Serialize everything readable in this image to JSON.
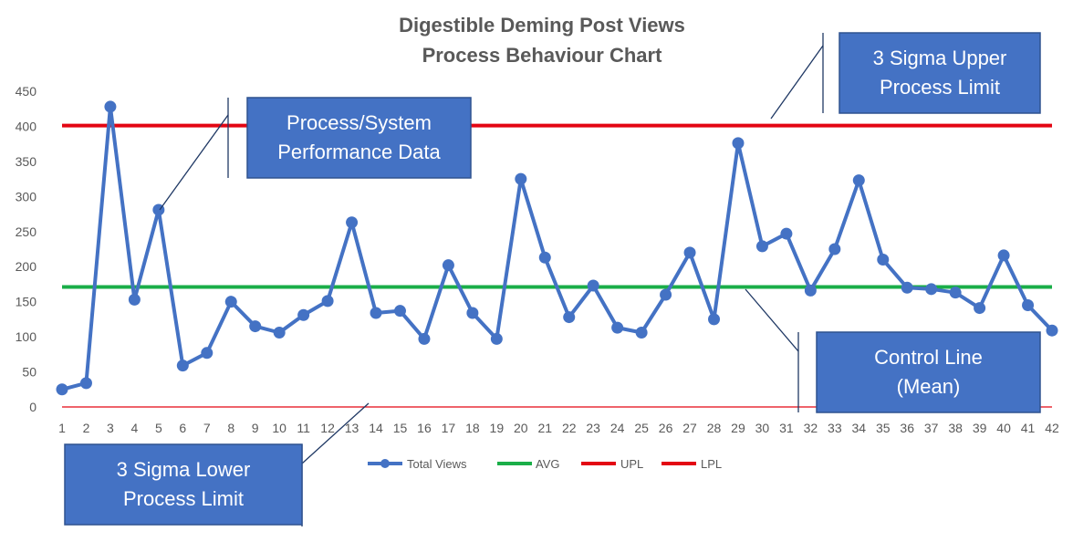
{
  "chart_data": {
    "type": "line",
    "title": [
      "Digestible Deming Post Views",
      "Process Behaviour Chart"
    ],
    "x": [
      1,
      2,
      3,
      4,
      5,
      6,
      7,
      8,
      9,
      10,
      11,
      12,
      13,
      14,
      15,
      16,
      17,
      18,
      19,
      20,
      21,
      22,
      23,
      24,
      25,
      26,
      27,
      28,
      29,
      30,
      31,
      32,
      33,
      34,
      35,
      36,
      37,
      38,
      39,
      40,
      41,
      42
    ],
    "ylim": [
      0,
      450
    ],
    "yticks": [
      0,
      50,
      100,
      150,
      200,
      250,
      300,
      350,
      400,
      450
    ],
    "grid": false,
    "legend_position": "bottom",
    "series": [
      {
        "name": "Total Views",
        "color": "#4472C4",
        "marker": "circle",
        "values": [
          25,
          34,
          428,
          153,
          281,
          59,
          77,
          150,
          115,
          106,
          131,
          151,
          263,
          134,
          137,
          97,
          202,
          134,
          97,
          325,
          213,
          128,
          173,
          113,
          106,
          160,
          220,
          125,
          376,
          229,
          247,
          166,
          225,
          323,
          210,
          170,
          168,
          163,
          141,
          216,
          145,
          109
        ]
      },
      {
        "name": "AVG",
        "color": "#1AAE48",
        "constant": 171
      },
      {
        "name": "UPL",
        "color": "#E30613",
        "constant": 401
      },
      {
        "name": "LPL",
        "color": "#E30613",
        "constant": 0
      }
    ],
    "annotations": [
      {
        "id": "data",
        "lines": [
          "Process/System",
          "Performance Data"
        ]
      },
      {
        "id": "upl",
        "lines": [
          "3 Sigma Upper",
          "Process Limit"
        ]
      },
      {
        "id": "mean",
        "lines": [
          "Control Line",
          "(Mean)"
        ]
      },
      {
        "id": "lpl",
        "lines": [
          "3 Sigma Lower",
          "Process Limit"
        ]
      }
    ]
  }
}
